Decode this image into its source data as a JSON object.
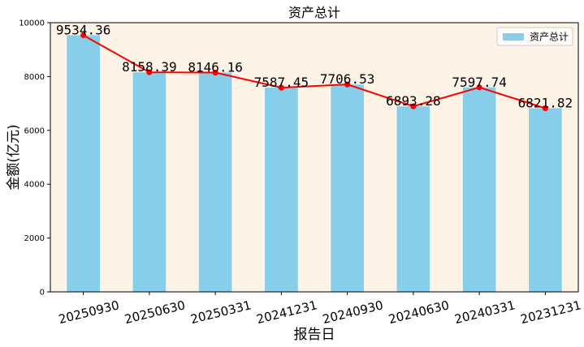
{
  "chart_data": {
    "type": "bar",
    "title": "资产总计",
    "xlabel": "报告日",
    "ylabel": "金额(亿元)",
    "categories": [
      "20250930",
      "20250630",
      "20250331",
      "20241231",
      "20240930",
      "20240630",
      "20240331",
      "20231231"
    ],
    "series": [
      {
        "name": "资产总计",
        "values": [
          9534.36,
          8158.39,
          8146.16,
          7587.45,
          7706.53,
          6893.28,
          7597.74,
          6821.82
        ]
      }
    ],
    "value_labels": [
      "9534.36",
      "8158.39",
      "8146.16",
      "7587.45",
      "7706.53",
      "6893.28",
      "7597.74",
      "6821.82"
    ],
    "overlay": "line-with-markers",
    "ylim": [
      0,
      10000
    ],
    "yticks": [
      0,
      2000,
      4000,
      6000,
      8000,
      10000
    ],
    "legend_position": "top-right",
    "grid": false,
    "colors": {
      "bar": "#87ceeb",
      "line": "#ff0000",
      "plot_background": "#fdf3e6",
      "axis": "#000000"
    }
  }
}
